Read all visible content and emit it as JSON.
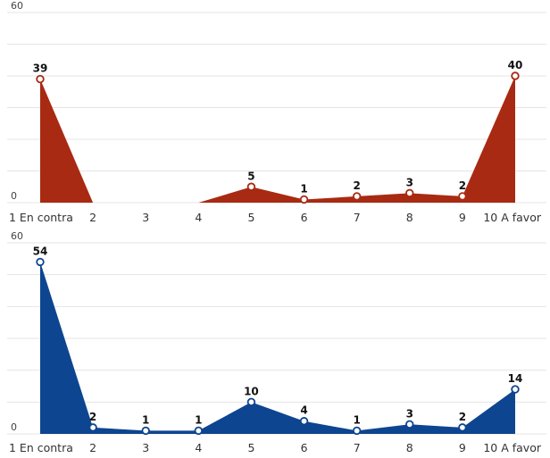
{
  "chart_data": [
    {
      "type": "area",
      "categories": [
        "1 En contra",
        "2",
        "3",
        "4",
        "5",
        "6",
        "7",
        "8",
        "9",
        "10 A favor"
      ],
      "values": [
        39,
        0,
        0,
        0,
        5,
        1,
        2,
        3,
        2,
        40
      ],
      "data_labels": [
        "39",
        "",
        "",
        "",
        "5",
        "1",
        "2",
        "3",
        "2",
        "40"
      ],
      "yticks": [
        "0",
        "60"
      ],
      "ylim": [
        0,
        60
      ],
      "color": "#a82a12",
      "grid": true
    },
    {
      "type": "area",
      "categories": [
        "1 En contra",
        "2",
        "3",
        "4",
        "5",
        "6",
        "7",
        "8",
        "9",
        "10 A favor"
      ],
      "values": [
        54,
        2,
        1,
        1,
        10,
        4,
        1,
        3,
        2,
        14
      ],
      "data_labels": [
        "54",
        "2",
        "1",
        "1",
        "10",
        "4",
        "1",
        "3",
        "2",
        "14"
      ],
      "yticks": [
        "0",
        "60"
      ],
      "ylim": [
        0,
        60
      ],
      "color": "#0d4590",
      "grid": true
    }
  ]
}
